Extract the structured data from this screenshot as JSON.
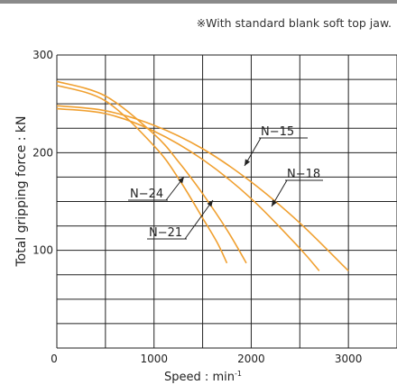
{
  "note": "※With standard blank soft top jaw.",
  "colors": {
    "curve": "#f0a030",
    "grid": "#222222",
    "axis_text": "#222222"
  },
  "chart_data": {
    "type": "line",
    "title": "",
    "xlabel": "Speed : min",
    "xlabel_superscript": "-1",
    "ylabel": "Total gripping force : kN",
    "xlim": [
      0,
      3500
    ],
    "ylim": [
      0,
      300
    ],
    "x_ticks": [
      0,
      1000,
      2000,
      3000
    ],
    "x_tick_labels": [
      "0",
      "1000",
      "2000",
      "3000"
    ],
    "y_ticks": [
      100,
      200,
      300
    ],
    "y_tick_labels": [
      "100",
      "200",
      "300"
    ],
    "grid": true,
    "series": [
      {
        "name": "N−15",
        "x": [
          0,
          500,
          1000,
          1500,
          2000,
          2500,
          3000
        ],
        "y": [
          248,
          243,
          228,
          204,
          170,
          128,
          79
        ]
      },
      {
        "name": "N−18",
        "x": [
          0,
          500,
          1000,
          1500,
          2000,
          2500,
          2700
        ],
        "y": [
          245,
          240,
          222,
          193,
          153,
          102,
          79
        ]
      },
      {
        "name": "N−21",
        "x": [
          0,
          500,
          1000,
          1250,
          1500,
          1750,
          1950
        ],
        "y": [
          273,
          258,
          219,
          191,
          158,
          121,
          87
        ]
      },
      {
        "name": "N−24",
        "x": [
          0,
          500,
          1000,
          1250,
          1500,
          1650,
          1750
        ],
        "y": [
          269,
          253,
          207,
          174,
          133,
          108,
          87
        ]
      }
    ],
    "annotations": [
      "N−15",
      "N−18",
      "N−21",
      "N−24"
    ]
  }
}
